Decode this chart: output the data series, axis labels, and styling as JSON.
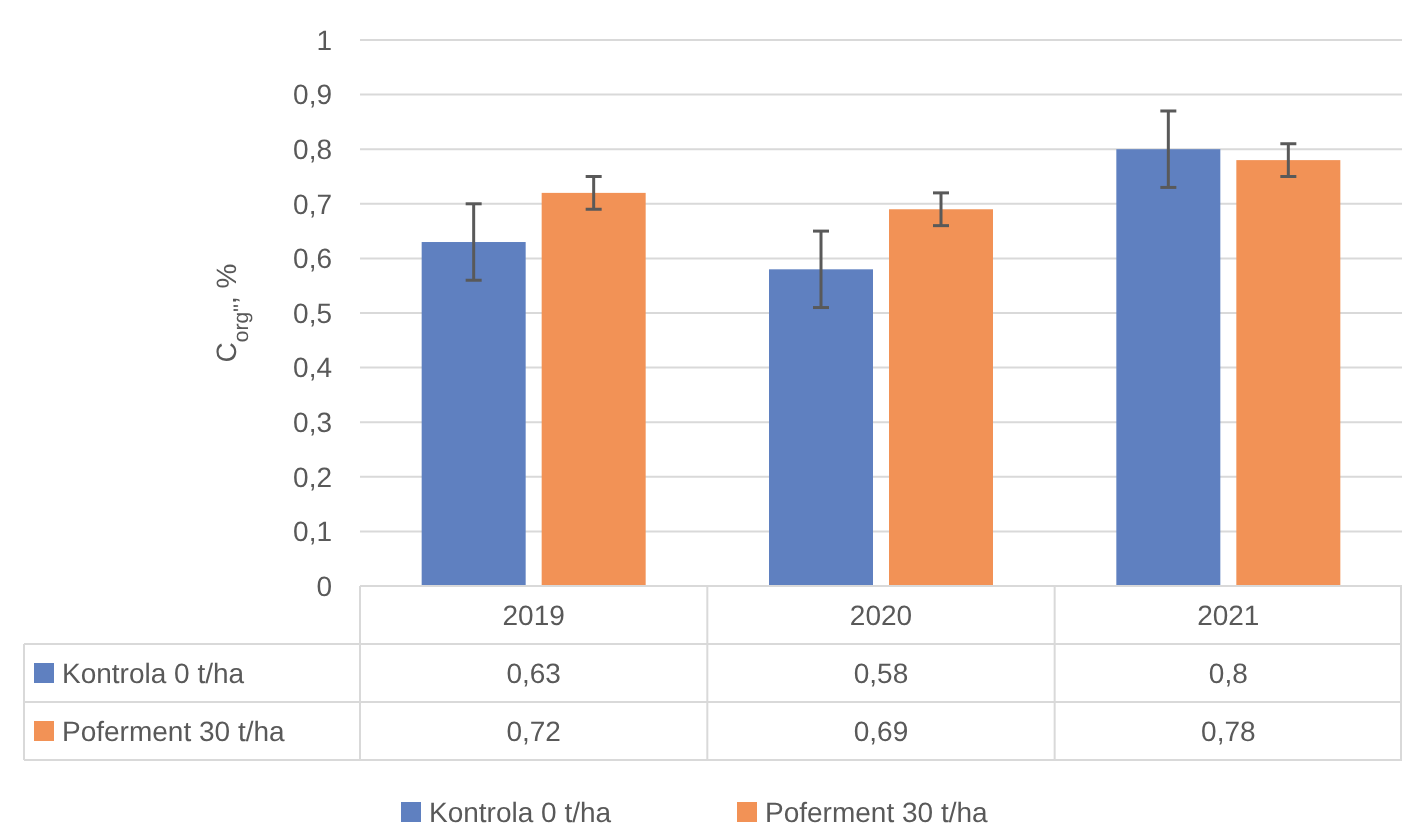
{
  "chart_data": {
    "type": "bar",
    "ylabel": "C$_{org''}$, %",
    "categories": [
      "2019",
      "2020",
      "2021"
    ],
    "series": [
      {
        "name": "Kontrola 0 t/ha",
        "color": "#5f80c0",
        "values": [
          0.63,
          0.58,
          0.8
        ],
        "errors": [
          0.07,
          0.07,
          0.07
        ],
        "value_labels": [
          "0,63",
          "0,58",
          "0,8"
        ]
      },
      {
        "name": "Poferment 30 t/ha",
        "color": "#f29256",
        "values": [
          0.72,
          0.69,
          0.78
        ],
        "errors": [
          0.03,
          0.03,
          0.03
        ],
        "value_labels": [
          "0,72",
          "0,69",
          "0,78"
        ]
      }
    ],
    "ylim": [
      0,
      1
    ],
    "yticks": [
      0,
      {
        "value": 0.1,
        "label": "0,1"
      },
      {
        "value": 0.2,
        "label": "0,2"
      },
      {
        "value": 0.3,
        "label": "0,3"
      },
      {
        "value": 0.4,
        "label": "0,4"
      },
      {
        "value": 0.5,
        "label": "0,5"
      },
      {
        "value": 0.6,
        "label": "0,6"
      },
      {
        "value": 0.7,
        "label": "0,7"
      },
      {
        "value": 0.8,
        "label": "0,8"
      },
      {
        "value": 0.9,
        "label": "0,9"
      },
      1
    ],
    "grid": "y",
    "legend": "bottom"
  }
}
